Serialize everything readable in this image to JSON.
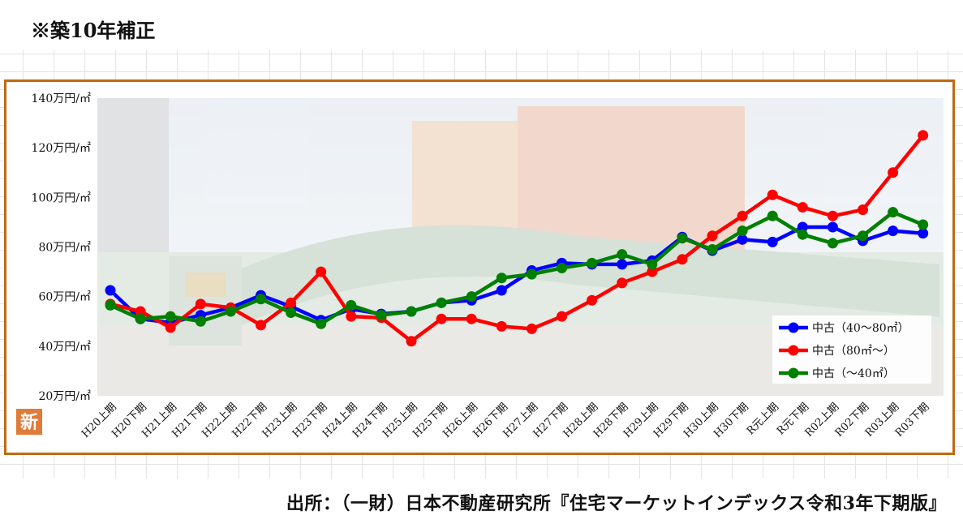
{
  "heading": "※築10年補正",
  "source": "出所：（一財）日本不動産研究所『住宅マーケットインデックス令和3年下期版』",
  "badge": "新",
  "colors": {
    "frame": "#c06a10",
    "blue": "#0000ff",
    "red": "#ff0000",
    "green": "#008000",
    "badge": "#e07b39"
  },
  "chart_data": {
    "type": "line",
    "ylim": [
      20,
      140
    ],
    "ylabel": "",
    "xlabel": "",
    "y_ticks": [
      "20万円/㎡",
      "40万円/㎡",
      "60万円/㎡",
      "80万円/㎡",
      "100万円/㎡",
      "120万円/㎡",
      "140万円/㎡"
    ],
    "y_tick_values": [
      20,
      40,
      60,
      80,
      100,
      120,
      140
    ],
    "categories": [
      "H20上期",
      "H20下期",
      "H21上期",
      "H21下期",
      "H22上期",
      "H22下期",
      "H23上期",
      "H23下期",
      "H24上期",
      "H24下期",
      "H25上期",
      "H25下期",
      "H26上期",
      "H26下期",
      "H27上期",
      "H27下期",
      "H28上期",
      "H28下期",
      "H29上期",
      "H29下期",
      "H30上期",
      "H30下期",
      "R元上期",
      "R元下期",
      "R02上期",
      "R02下期",
      "R03上期",
      "R03下期"
    ],
    "legend_position": "bottom-right",
    "series": [
      {
        "name": "中古（40～80㎡）",
        "color": "#0000ff",
        "values": [
          62.5,
          51.0,
          49.5,
          52.5,
          55.5,
          60.5,
          56.0,
          50.5,
          55.0,
          53.0,
          54.0,
          57.5,
          58.5,
          62.5,
          70.5,
          73.5,
          73.0,
          73.0,
          74.5,
          84.0,
          78.5,
          83.0,
          82.0,
          88.0,
          88.0,
          82.5,
          86.5,
          85.5
        ]
      },
      {
        "name": "中古（80㎡～）",
        "color": "#ff0000",
        "values": [
          57.0,
          54.0,
          47.5,
          57.0,
          55.5,
          48.5,
          57.5,
          70.0,
          52.0,
          51.5,
          42.0,
          51.0,
          51.0,
          48.0,
          47.0,
          52.0,
          58.5,
          65.5,
          70.0,
          75.0,
          84.5,
          92.5,
          101.0,
          96.0,
          92.5,
          95.0,
          110.0,
          125.0
        ]
      },
      {
        "name": "中古（～40㎡）",
        "color": "#008000",
        "values": [
          56.5,
          51.0,
          52.0,
          50.0,
          54.0,
          59.0,
          53.5,
          49.0,
          56.5,
          52.5,
          54.0,
          57.5,
          60.0,
          67.5,
          69.0,
          71.5,
          73.5,
          77.0,
          73.0,
          83.5,
          79.0,
          86.5,
          92.5,
          85.0,
          81.5,
          84.5,
          94.0,
          89.0
        ]
      }
    ]
  }
}
